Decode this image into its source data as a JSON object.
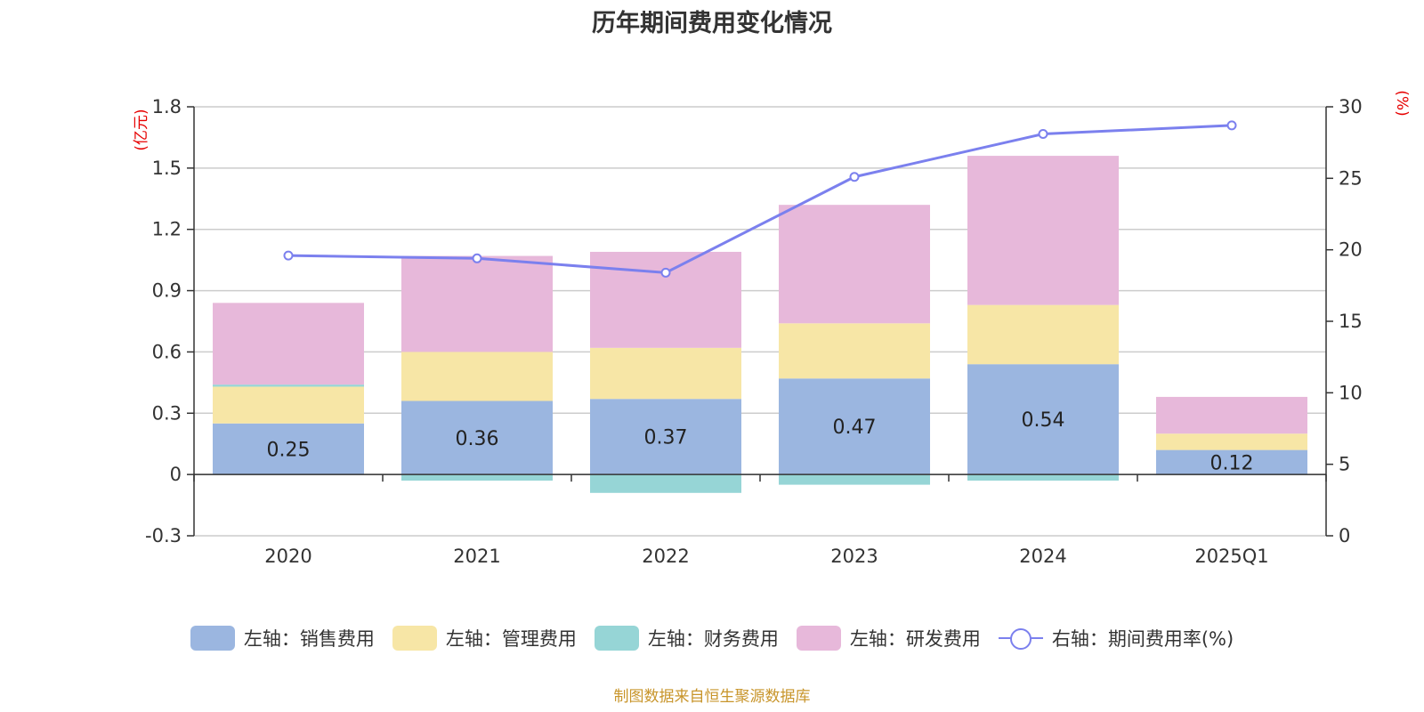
{
  "chart_data": {
    "type": "bar",
    "title": "历年期间费用变化情况",
    "categories": [
      "2020",
      "2021",
      "2022",
      "2023",
      "2024",
      "2025Q1"
    ],
    "left_axis": {
      "unit": "(亿元)",
      "ylim": [
        -0.3,
        1.8
      ],
      "ticks": [
        "1.8",
        "1.5",
        "1.2",
        "0.9",
        "0.6",
        "0.3",
        "0",
        "-0.3"
      ]
    },
    "right_axis": {
      "unit": "(%)",
      "ylim": [
        0,
        30
      ],
      "ticks": [
        "30",
        "25",
        "20",
        "15",
        "10",
        "5",
        "0"
      ]
    },
    "series": [
      {
        "name": "左轴：销售费用",
        "color": "#9BB6E0",
        "values": [
          0.25,
          0.36,
          0.37,
          0.47,
          0.54,
          0.12
        ],
        "labels": [
          "0.25",
          "0.36",
          "0.37",
          "0.47",
          "0.54",
          "0.12"
        ]
      },
      {
        "name": "左轴：管理费用",
        "color": "#F7E6A6",
        "values": [
          0.18,
          0.24,
          0.25,
          0.27,
          0.29,
          0.08
        ]
      },
      {
        "name": "左轴：财务费用",
        "color": "#96D5D6",
        "values": [
          0.01,
          -0.03,
          -0.09,
          -0.05,
          -0.03,
          0.0
        ]
      },
      {
        "name": "左轴：研发费用",
        "color": "#E7B8DA",
        "values": [
          0.4,
          0.47,
          0.47,
          0.58,
          0.73,
          0.18
        ]
      },
      {
        "name": "右轴：期间费用率(%)",
        "type": "line",
        "color": "#7B80EE",
        "values": [
          19.6,
          19.4,
          18.4,
          25.1,
          28.1,
          28.7
        ]
      }
    ]
  },
  "legend": [
    {
      "label": "左轴：销售费用",
      "color": "#9BB6E0",
      "icon": "bar-swatch"
    },
    {
      "label": "左轴：管理费用",
      "color": "#F7E6A6",
      "icon": "bar-swatch"
    },
    {
      "label": "左轴：财务费用",
      "color": "#96D5D6",
      "icon": "bar-swatch"
    },
    {
      "label": "左轴：研发费用",
      "color": "#E7B8DA",
      "icon": "bar-swatch"
    },
    {
      "label": "右轴：期间费用率(%)",
      "color": "#7B80EE",
      "icon": "line-circle"
    }
  ],
  "source": "制图数据来自恒生聚源数据库"
}
